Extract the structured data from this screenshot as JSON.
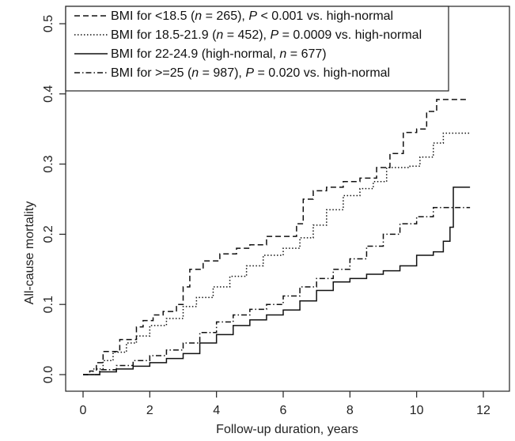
{
  "chart_data": {
    "type": "line",
    "xlabel": "Follow-up duration, years",
    "ylabel": "All-cause mortality",
    "xlim": [
      0,
      12
    ],
    "ylim": [
      0,
      0.5
    ],
    "x_ticks": [
      "0",
      "2",
      "4",
      "6",
      "8",
      "10",
      "12"
    ],
    "y_ticks": [
      "0.0",
      "0.1",
      "0.2",
      "0.3",
      "0.4",
      "0.5"
    ],
    "grid": false,
    "legend_position": "top-left",
    "series": [
      {
        "name_parts": [
          "BMI for <18.5 (",
          "n",
          " = 265), ",
          "P",
          " < 0.001 vs. high-normal"
        ],
        "dash": "dashed",
        "points": [
          [
            0,
            0
          ],
          [
            0.2,
            0.005
          ],
          [
            0.4,
            0.017
          ],
          [
            0.6,
            0.033
          ],
          [
            0.9,
            0.033
          ],
          [
            1.1,
            0.05
          ],
          [
            1.4,
            0.05
          ],
          [
            1.6,
            0.068
          ],
          [
            1.8,
            0.077
          ],
          [
            2.1,
            0.085
          ],
          [
            2.4,
            0.09
          ],
          [
            2.8,
            0.1
          ],
          [
            3.0,
            0.125
          ],
          [
            3.2,
            0.15
          ],
          [
            3.6,
            0.162
          ],
          [
            4.1,
            0.172
          ],
          [
            4.6,
            0.18
          ],
          [
            5.0,
            0.185
          ],
          [
            5.5,
            0.197
          ],
          [
            6.0,
            0.197
          ],
          [
            6.4,
            0.215
          ],
          [
            6.6,
            0.25
          ],
          [
            6.9,
            0.262
          ],
          [
            7.3,
            0.267
          ],
          [
            7.8,
            0.275
          ],
          [
            8.3,
            0.28
          ],
          [
            8.8,
            0.295
          ],
          [
            9.2,
            0.315
          ],
          [
            9.6,
            0.345
          ],
          [
            10.0,
            0.35
          ],
          [
            10.3,
            0.375
          ],
          [
            10.6,
            0.392
          ],
          [
            11.5,
            0.392
          ]
        ]
      },
      {
        "name_parts": [
          "BMI for 18.5-21.9 (",
          "n",
          " = 452), ",
          "P",
          " = 0.0009 vs. high-normal"
        ],
        "dash": "dotted",
        "points": [
          [
            0,
            0
          ],
          [
            0.3,
            0.008
          ],
          [
            0.6,
            0.02
          ],
          [
            0.9,
            0.032
          ],
          [
            1.3,
            0.045
          ],
          [
            1.6,
            0.055
          ],
          [
            2.0,
            0.07
          ],
          [
            2.5,
            0.08
          ],
          [
            3.0,
            0.097
          ],
          [
            3.4,
            0.11
          ],
          [
            3.9,
            0.125
          ],
          [
            4.4,
            0.14
          ],
          [
            4.9,
            0.155
          ],
          [
            5.4,
            0.17
          ],
          [
            6.0,
            0.18
          ],
          [
            6.5,
            0.195
          ],
          [
            6.9,
            0.213
          ],
          [
            7.3,
            0.235
          ],
          [
            7.8,
            0.255
          ],
          [
            8.3,
            0.265
          ],
          [
            8.7,
            0.275
          ],
          [
            9.1,
            0.295
          ],
          [
            9.8,
            0.297
          ],
          [
            10.1,
            0.31
          ],
          [
            10.5,
            0.33
          ],
          [
            10.8,
            0.344
          ],
          [
            11.6,
            0.344
          ]
        ]
      },
      {
        "name_parts": [
          "BMI for 22-24.9 (high-normal, ",
          "n",
          " = 677)"
        ],
        "dash": "solid",
        "points": [
          [
            0,
            0
          ],
          [
            0.5,
            0.004
          ],
          [
            1.0,
            0.008
          ],
          [
            1.5,
            0.012
          ],
          [
            2.0,
            0.017
          ],
          [
            2.5,
            0.023
          ],
          [
            3.0,
            0.03
          ],
          [
            3.5,
            0.045
          ],
          [
            4.0,
            0.057
          ],
          [
            4.5,
            0.07
          ],
          [
            5.0,
            0.078
          ],
          [
            5.5,
            0.085
          ],
          [
            6.0,
            0.092
          ],
          [
            6.5,
            0.105
          ],
          [
            7.0,
            0.12
          ],
          [
            7.5,
            0.132
          ],
          [
            8.0,
            0.137
          ],
          [
            8.5,
            0.143
          ],
          [
            9.0,
            0.148
          ],
          [
            9.5,
            0.155
          ],
          [
            10.0,
            0.17
          ],
          [
            10.5,
            0.175
          ],
          [
            10.8,
            0.19
          ],
          [
            11.0,
            0.21
          ],
          [
            11.1,
            0.267
          ],
          [
            11.6,
            0.267
          ]
        ]
      },
      {
        "name_parts": [
          "BMI for >=25 (",
          "n",
          " = 987), ",
          "P",
          " = 0.020 vs. high-normal"
        ],
        "dash": "dashdot",
        "points": [
          [
            0,
            0
          ],
          [
            0.5,
            0.007
          ],
          [
            1.0,
            0.013
          ],
          [
            1.5,
            0.02
          ],
          [
            2.0,
            0.027
          ],
          [
            2.5,
            0.035
          ],
          [
            3.0,
            0.045
          ],
          [
            3.5,
            0.06
          ],
          [
            4.0,
            0.075
          ],
          [
            4.5,
            0.085
          ],
          [
            5.0,
            0.093
          ],
          [
            5.5,
            0.1
          ],
          [
            6.0,
            0.112
          ],
          [
            6.5,
            0.125
          ],
          [
            7.0,
            0.137
          ],
          [
            7.5,
            0.15
          ],
          [
            8.0,
            0.165
          ],
          [
            8.5,
            0.183
          ],
          [
            9.0,
            0.2
          ],
          [
            9.5,
            0.215
          ],
          [
            10.0,
            0.225
          ],
          [
            10.5,
            0.238
          ],
          [
            11.6,
            0.238
          ]
        ]
      }
    ]
  }
}
